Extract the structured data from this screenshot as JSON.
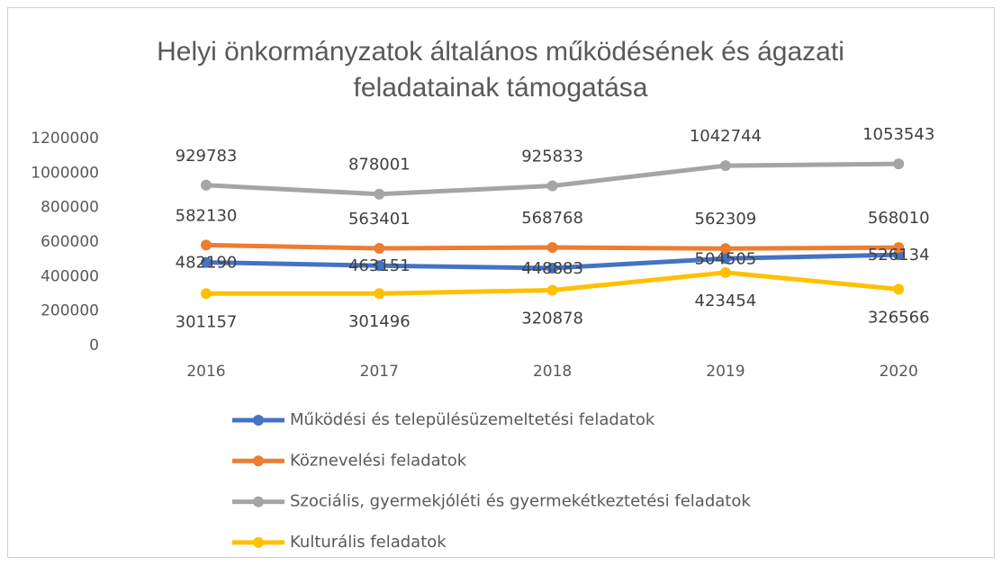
{
  "chart_data": {
    "type": "line",
    "title": "Helyi önkormányzatok általános működésének és ágazati feladatainak támogatása",
    "categories": [
      "2016",
      "2017",
      "2018",
      "2019",
      "2020"
    ],
    "series": [
      {
        "name": "Működési és településüzemeltetési feladatok",
        "color": "#4472c4",
        "values": [
          482190,
          463151,
          448883,
          504505,
          526134
        ]
      },
      {
        "name": "Köznevelési feladatok",
        "color": "#ed7d31",
        "values": [
          582130,
          563401,
          568768,
          562309,
          568010
        ]
      },
      {
        "name": "Szociális, gyermekjóléti és gyermekétkeztetési feladatok",
        "color": "#a5a5a5",
        "values": [
          929783,
          878001,
          925833,
          1042744,
          1053543
        ]
      },
      {
        "name": "Kulturális feladatok",
        "color": "#ffc000",
        "values": [
          301157,
          301496,
          320878,
          423454,
          326566
        ]
      }
    ],
    "ylim": [
      0,
      1200000
    ],
    "yticks": [
      0,
      200000,
      400000,
      600000,
      800000,
      1000000,
      1200000
    ],
    "grid": false,
    "data_labels": true
  }
}
